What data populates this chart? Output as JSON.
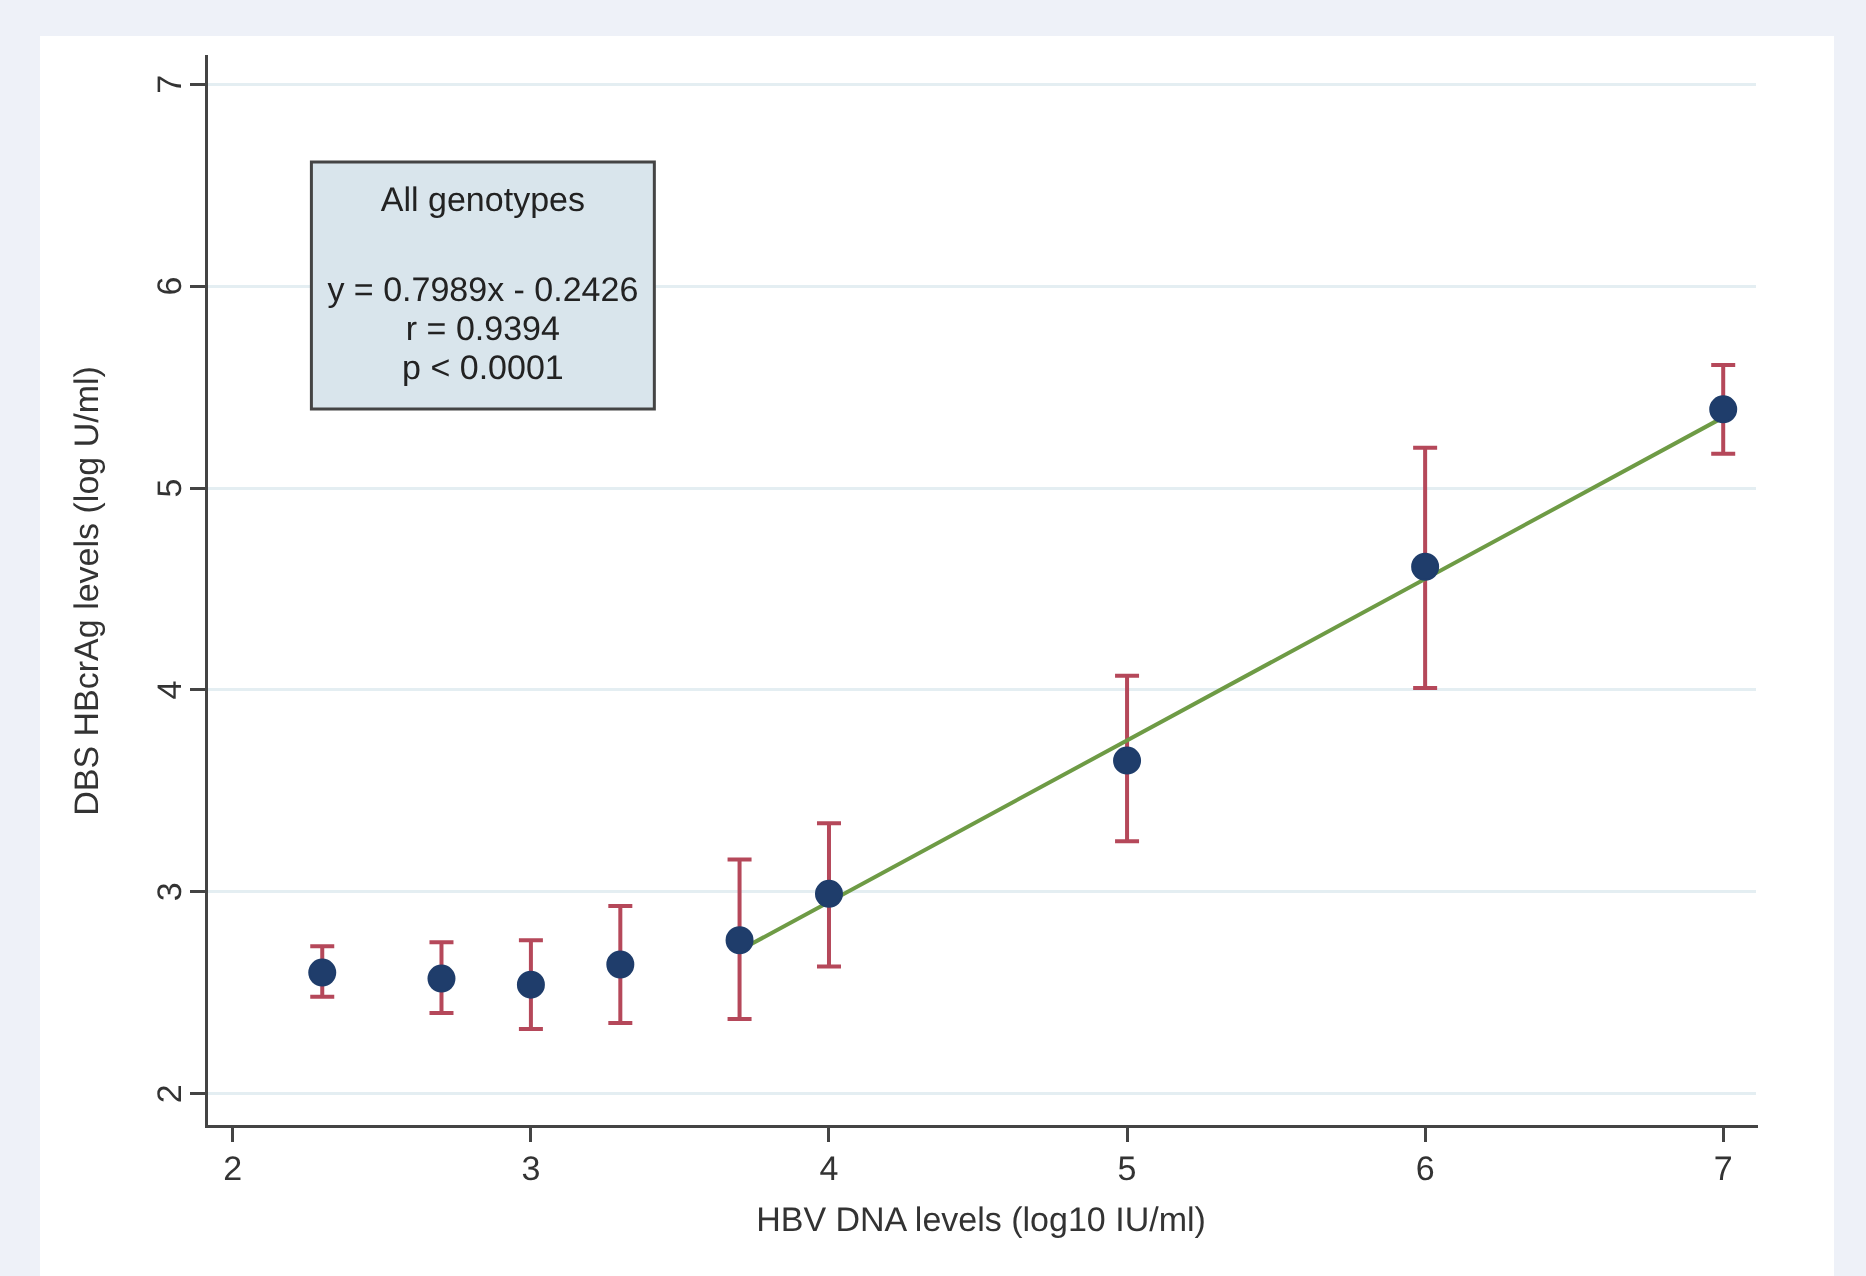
{
  "chart_data": {
    "type": "scatter",
    "xlabel": "HBV DNA levels (log10 IU/ml)",
    "ylabel": "DBS HBcrAg levels (log U/ml)",
    "annotations": [
      "All genotypes",
      "y = 0.7989x - 0.2426",
      "r = 0.9394",
      "p < 0.0001"
    ],
    "xlim": [
      1.91,
      7.11
    ],
    "xticks": [
      2,
      3,
      4,
      5,
      6,
      7
    ],
    "ylim": [
      1.84,
      7.14
    ],
    "yticks": [
      2,
      3,
      4,
      5,
      6,
      7
    ],
    "grid": "y",
    "marker": "circle",
    "series": [
      {
        "color": "#1f3d6b",
        "x": [
          2.3,
          2.7,
          3,
          3.3,
          3.7,
          4,
          5,
          6,
          7
        ],
        "values": [
          2.6,
          2.57,
          2.54,
          2.64,
          2.76,
          2.99,
          3.65,
          4.61,
          5.39
        ],
        "errors": [
          [
            2.48,
            2.73
          ],
          [
            2.4,
            2.75
          ],
          [
            2.32,
            2.76
          ],
          [
            2.35,
            2.93
          ],
          [
            2.37,
            3.16
          ],
          [
            2.63,
            3.34
          ],
          [
            3.25,
            4.07
          ],
          [
            4.01,
            5.2
          ],
          [
            5.17,
            5.61
          ]
        ]
      },
      {
        "type": "line",
        "color": "#6e9b45",
        "x": [
          3.7,
          7
        ],
        "values": [
          2.71,
          5.35
        ],
        "marker": "none",
        "line_style": "solid"
      }
    ]
  }
}
